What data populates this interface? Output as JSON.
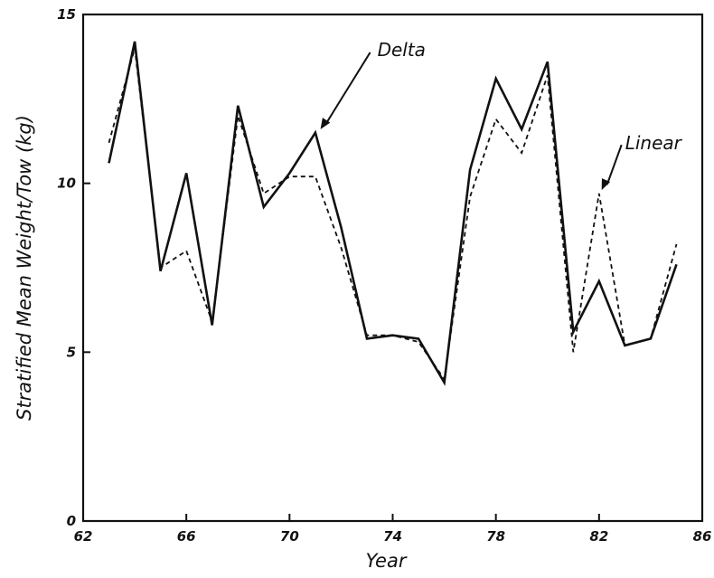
{
  "chart_data": {
    "type": "line",
    "title": "",
    "xlabel": "Year",
    "ylabel": "Stratified Mean Weight/Tow (kg)",
    "xlim": [
      62,
      86
    ],
    "ylim": [
      0,
      15
    ],
    "xticks": [
      62,
      66,
      70,
      74,
      78,
      82,
      86
    ],
    "yticks": [
      0,
      5,
      10,
      15
    ],
    "x_tick_labels": [
      "62",
      "66",
      "70",
      "74",
      "78",
      "82",
      "86"
    ],
    "y_tick_labels": [
      "0",
      "5",
      "10",
      "15"
    ],
    "grid": false,
    "legend": "none",
    "series": [
      {
        "name": "Delta",
        "style": "solid",
        "color": "#111111",
        "x": [
          63,
          64,
          65,
          66,
          67,
          68,
          69,
          70,
          71,
          72,
          73,
          74,
          75,
          76,
          77,
          78,
          79,
          80,
          81,
          82,
          83,
          84,
          85
        ],
        "y": [
          10.6,
          14.2,
          7.4,
          10.3,
          5.8,
          12.3,
          9.3,
          10.3,
          11.5,
          8.7,
          5.4,
          5.5,
          5.4,
          4.1,
          10.4,
          13.1,
          11.6,
          13.6,
          5.6,
          7.1,
          5.2,
          5.4,
          7.6
        ]
      },
      {
        "name": "Linear",
        "style": "dashed",
        "color": "#111111",
        "x": [
          63,
          64,
          65,
          66,
          67,
          68,
          69,
          70,
          71,
          72,
          73,
          74,
          75,
          76,
          77,
          78,
          79,
          80,
          81,
          82,
          83,
          84,
          85
        ],
        "y": [
          11.2,
          14.0,
          7.5,
          8.0,
          5.9,
          12.0,
          9.7,
          10.2,
          10.2,
          8.1,
          5.5,
          5.5,
          5.3,
          4.2,
          9.6,
          11.9,
          10.9,
          13.2,
          5.0,
          9.7,
          5.2,
          5.4,
          8.2
        ]
      }
    ],
    "annotations": [
      {
        "text": "Delta",
        "x": 71.2,
        "y": 11.6
      },
      {
        "text": "Linear",
        "x": 82.1,
        "y": 9.8
      }
    ]
  }
}
